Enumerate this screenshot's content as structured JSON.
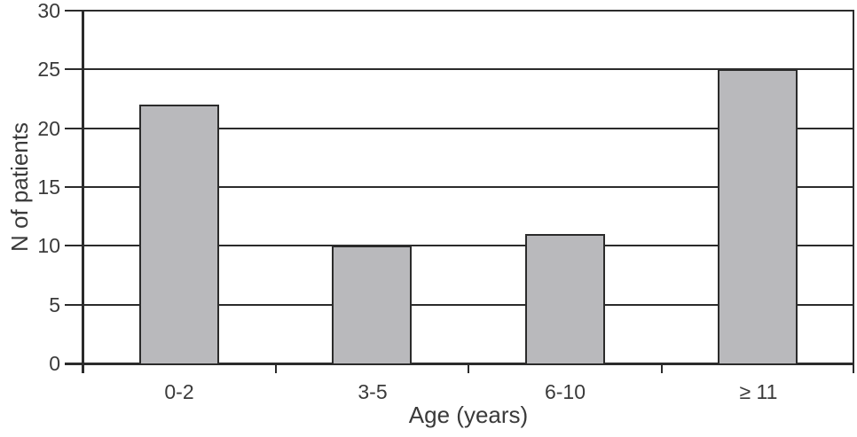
{
  "chart_data": {
    "type": "bar",
    "categories": [
      "0-2",
      "3-5",
      "6-10",
      "≥ 11"
    ],
    "values": [
      22,
      10,
      11,
      25
    ],
    "title": "",
    "xlabel": "Age (years)",
    "ylabel": "N of patients",
    "ylim": [
      0,
      30
    ],
    "yticks": [
      0,
      5,
      10,
      15,
      20,
      25,
      30
    ],
    "grid": true,
    "legend": false,
    "colors": {
      "bar_fill": "#b9b9bc",
      "line": "#2b2b2b",
      "text": "#3a3a3a",
      "background": "#ffffff"
    }
  }
}
